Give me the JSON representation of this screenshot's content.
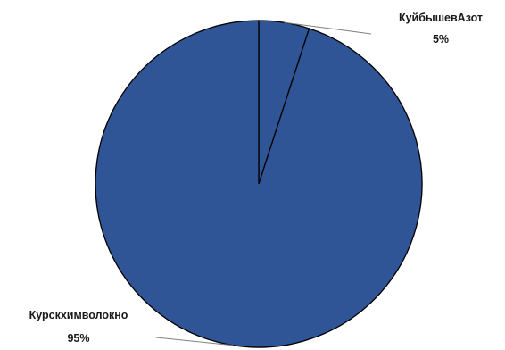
{
  "chart_data": {
    "type": "pie",
    "slices": [
      {
        "label": "КуйбышевАзот",
        "value": 5,
        "value_label": "5%",
        "color": "#2f5597"
      },
      {
        "label": "Курскхимволокно",
        "value": 95,
        "value_label": "95%",
        "color": "#2f5597"
      }
    ],
    "start_angle": "12 o'clock",
    "direction": "clockwise",
    "legend": "none",
    "slice_border_color": "#000000"
  }
}
